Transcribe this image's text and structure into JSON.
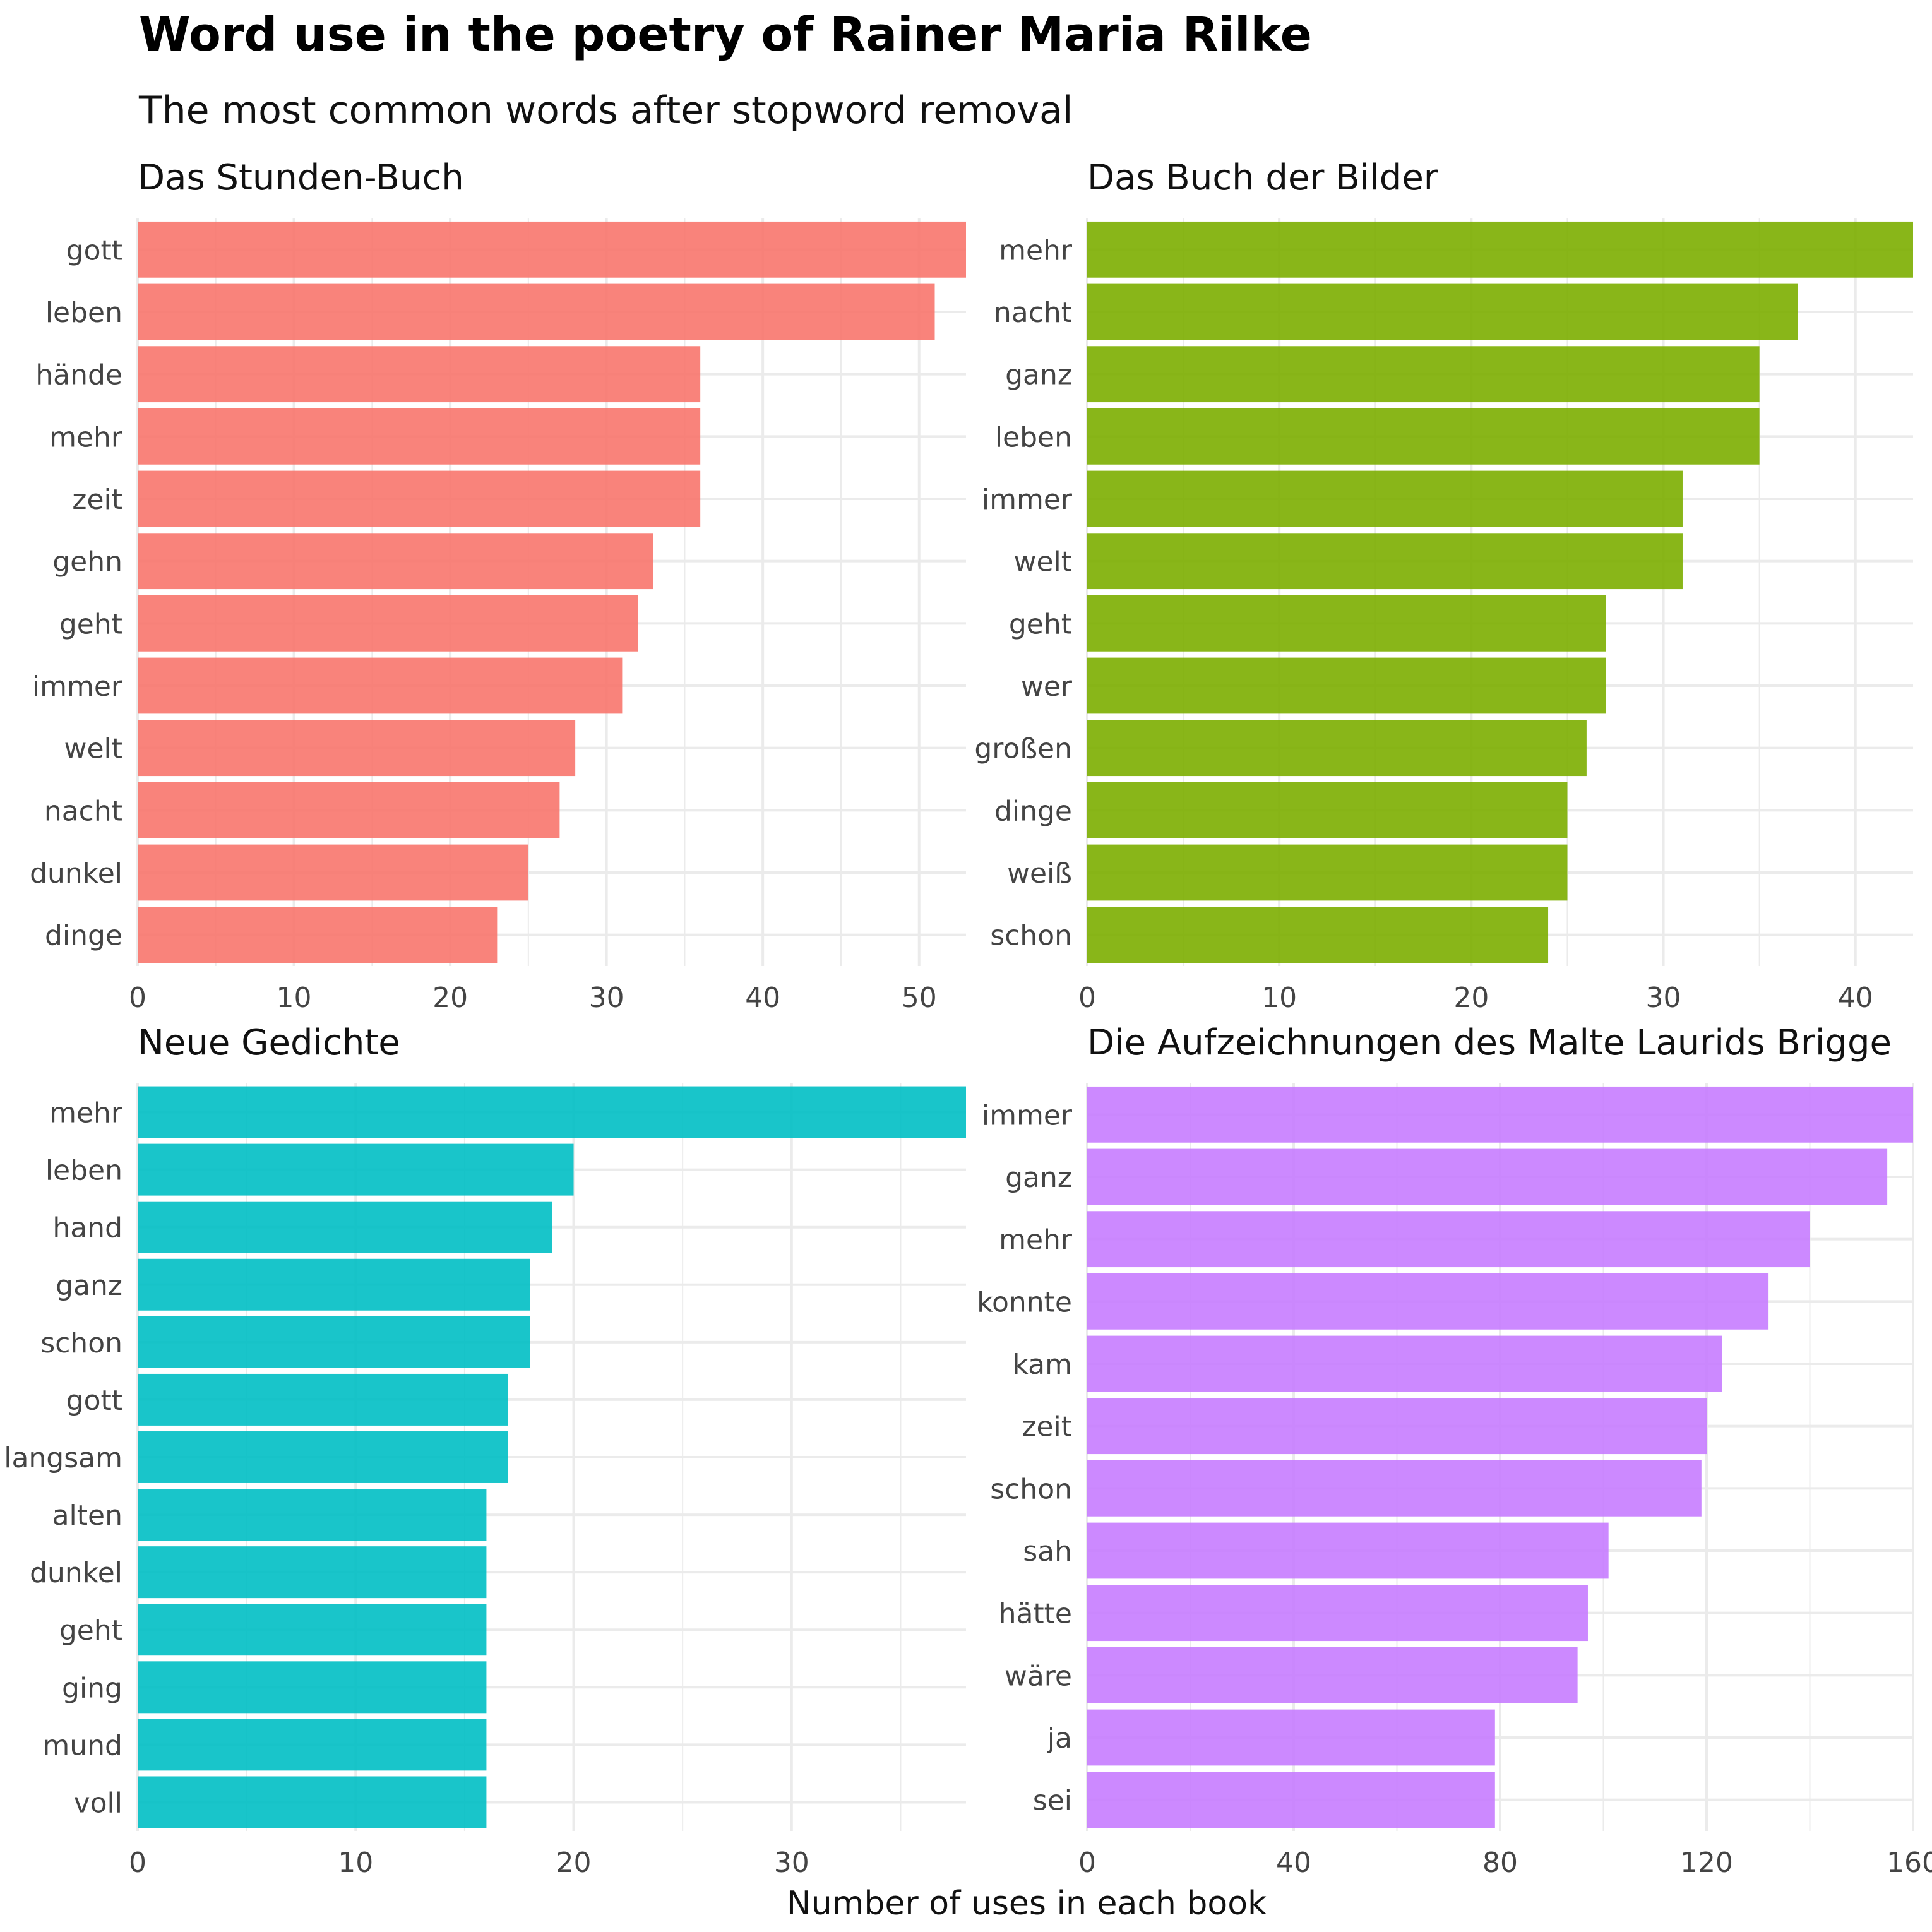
{
  "title": "Word use in the poetry of Rainer Maria Rilke",
  "subtitle": "The most common words after stopword removal",
  "xlabel": "Number of uses in each book",
  "chart_data": [
    {
      "type": "bar",
      "orientation": "horizontal",
      "title": "Das Stunden-Buch",
      "color": "#F8766D",
      "categories": [
        "gott",
        "leben",
        "hände",
        "mehr",
        "zeit",
        "gehn",
        "geht",
        "immer",
        "welt",
        "nacht",
        "dunkel",
        "dinge"
      ],
      "values": [
        53,
        51,
        36,
        36,
        36,
        33,
        32,
        31,
        28,
        27,
        25,
        23
      ],
      "xlim": [
        0,
        53
      ],
      "xticks": [
        0,
        10,
        20,
        30,
        40,
        50
      ],
      "grid": true
    },
    {
      "type": "bar",
      "orientation": "horizontal",
      "title": "Das Buch der Bilder",
      "color": "#7CAE00",
      "categories": [
        "mehr",
        "nacht",
        "ganz",
        "leben",
        "immer",
        "welt",
        "geht",
        "wer",
        "großen",
        "dinge",
        "weiß",
        "schon"
      ],
      "values": [
        43,
        37,
        35,
        35,
        31,
        31,
        27,
        27,
        26,
        25,
        25,
        24
      ],
      "xlim": [
        0,
        43
      ],
      "xticks": [
        0,
        10,
        20,
        30,
        40
      ],
      "grid": true
    },
    {
      "type": "bar",
      "orientation": "horizontal",
      "title": "Neue Gedichte",
      "color": "#00BFC4",
      "categories": [
        "mehr",
        "leben",
        "hand",
        "ganz",
        "schon",
        "gott",
        "langsam",
        "alten",
        "dunkel",
        "geht",
        "ging",
        "mund",
        "voll"
      ],
      "values": [
        38,
        20,
        19,
        18,
        18,
        17,
        17,
        16,
        16,
        16,
        16,
        16,
        16
      ],
      "xlim": [
        0,
        38
      ],
      "xticks": [
        0,
        10,
        20,
        30
      ],
      "grid": true
    },
    {
      "type": "bar",
      "orientation": "horizontal",
      "title": "Die Aufzeichnungen des Malte Laurids Brigge",
      "color": "#C77CFF",
      "categories": [
        "immer",
        "ganz",
        "mehr",
        "konnte",
        "kam",
        "zeit",
        "schon",
        "sah",
        "hätte",
        "wäre",
        "ja",
        "sei"
      ],
      "values": [
        160,
        155,
        140,
        132,
        123,
        120,
        119,
        101,
        97,
        95,
        79,
        79
      ],
      "xlim": [
        0,
        160
      ],
      "xticks": [
        0,
        40,
        80,
        120,
        160
      ],
      "grid": true
    }
  ]
}
